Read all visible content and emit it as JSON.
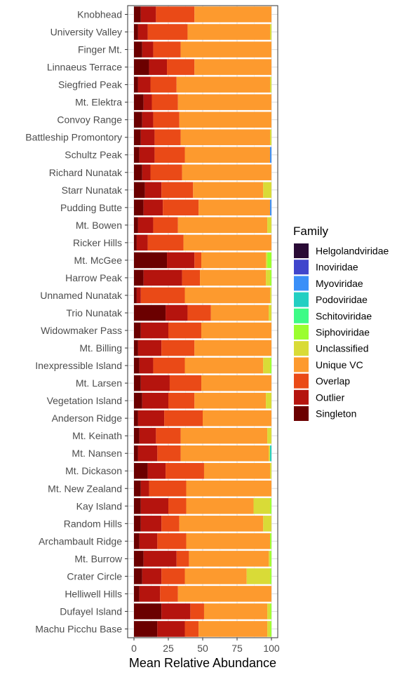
{
  "chart_data": {
    "type": "bar",
    "orientation": "horizontal",
    "stacked": true,
    "xlabel": "Mean Relative Abundance",
    "ylabel": "",
    "xlim": [
      0,
      100
    ],
    "xticks": [
      "0",
      "25",
      "50",
      "75",
      "100"
    ],
    "grid": true,
    "legend": {
      "title": "Family",
      "placement": "right"
    },
    "categories": [
      "Knobhead",
      "University Valley",
      "Finger Mt.",
      "Linnaeus Terrace",
      "Siegfried Peak",
      "Mt. Elektra",
      "Convoy Range",
      "Battleship Promontory",
      "Schultz Peak",
      "Richard Nunatak",
      "Starr Nunatak",
      "Pudding Butte",
      "Mt. Bowen",
      "Ricker Hills",
      "Mt. McGee",
      "Harrow Peak",
      "Unnamed Nunatak",
      "Trio Nunatak",
      "Widowmaker Pass",
      "Mt. Billing",
      "Inexpressible Island",
      "Mt. Larsen",
      "Vegetation Island",
      "Anderson Ridge",
      "Mt. Keinath",
      "Mt. Nansen",
      "Mt. Dickason",
      "Mt. New Zealand",
      "Kay Island",
      "Random Hills",
      "Archambault Ridge",
      "Mt. Burrow",
      "Crater Circle",
      "Helliwell Hills",
      "Dufayel Island",
      "Machu Picchu Base"
    ],
    "series": [
      {
        "name": "Singleton",
        "color": "#6b0000",
        "values": [
          5,
          3,
          6,
          11,
          3,
          7,
          6,
          5,
          4,
          6,
          8,
          7,
          3,
          2,
          24,
          7,
          2,
          23,
          5,
          3,
          4,
          5,
          6,
          3,
          4,
          3,
          10,
          5,
          5,
          5,
          4,
          7,
          6,
          4,
          20,
          17
        ]
      },
      {
        "name": "Outlier",
        "color": "#b5140e",
        "values": [
          11,
          7,
          8,
          13,
          9,
          6,
          8,
          10,
          11,
          6,
          12,
          14,
          11,
          8,
          20,
          28,
          3,
          16,
          20,
          17,
          10,
          21,
          19,
          19,
          12,
          14,
          13,
          6,
          20,
          15,
          13,
          24,
          14,
          15,
          21,
          20
        ]
      },
      {
        "name": "Overlap",
        "color": "#ea4a17",
        "values": [
          28,
          29,
          20,
          20,
          19,
          19,
          19,
          19,
          22,
          23,
          23,
          26,
          18,
          26,
          5,
          13,
          32,
          17,
          24,
          24,
          23,
          23,
          19,
          28,
          18,
          17,
          28,
          27,
          13,
          13,
          21,
          9,
          17,
          13,
          10,
          10
        ]
      },
      {
        "name": "Unique VC",
        "color": "#fd9a2e",
        "values": [
          56,
          60,
          66,
          56,
          68,
          68,
          67,
          65,
          62,
          65,
          51,
          52,
          65,
          64,
          47,
          48,
          62,
          42,
          51,
          56,
          57,
          51,
          52,
          50,
          63,
          64,
          48,
          62,
          49,
          61,
          61,
          58,
          45,
          68,
          46,
          50
        ]
      },
      {
        "name": "Unclassified",
        "color": "#d9db37",
        "values": [
          0,
          1,
          0,
          0,
          1,
          0,
          0,
          1,
          0,
          0,
          6,
          0,
          3,
          0,
          1,
          3,
          1,
          2,
          0,
          0,
          5,
          0,
          4,
          0,
          3,
          1,
          1,
          0,
          12,
          6,
          0,
          1,
          17,
          0,
          2,
          2
        ]
      },
      {
        "name": "Siphoviridae",
        "color": "#9bfe2f",
        "values": [
          0,
          0,
          0,
          0,
          0,
          0,
          0,
          0,
          0,
          0,
          0,
          0,
          0,
          0,
          3,
          1,
          0,
          0,
          0,
          0,
          1,
          0,
          0,
          0,
          0,
          0,
          0,
          0,
          1,
          0,
          1,
          1,
          1,
          0,
          1,
          1
        ]
      },
      {
        "name": "Schitoviridae",
        "color": "#3dfb86",
        "values": [
          0,
          0,
          0,
          0,
          0,
          0,
          0,
          0,
          0,
          0,
          0,
          0,
          0,
          0,
          0,
          0,
          0,
          0,
          0,
          0,
          0,
          0,
          0,
          0,
          0,
          0,
          0,
          0,
          0,
          0,
          0,
          0,
          0,
          0,
          0,
          0
        ]
      },
      {
        "name": "Podoviridae",
        "color": "#22cfc2",
        "values": [
          0,
          0,
          0,
          0,
          0,
          0,
          0,
          0,
          0,
          0,
          0,
          0,
          0,
          0,
          0,
          0,
          0,
          0,
          0,
          0,
          0,
          0,
          0,
          0,
          0,
          1,
          0,
          0,
          0,
          0,
          0,
          0,
          0,
          0,
          0,
          0
        ]
      },
      {
        "name": "Myoviridae",
        "color": "#3a8ff8",
        "values": [
          0,
          0,
          0,
          0,
          0,
          0,
          0,
          0,
          1,
          0,
          0,
          1,
          0,
          0,
          0,
          0,
          0,
          0,
          0,
          0,
          0,
          0,
          0,
          0,
          0,
          0,
          0,
          0,
          0,
          0,
          0,
          0,
          0,
          0,
          0,
          0
        ]
      },
      {
        "name": "Inoviridae",
        "color": "#4046cc",
        "values": [
          0,
          0,
          0,
          0,
          0,
          0,
          0,
          0,
          0,
          0,
          0,
          0,
          0,
          0,
          0,
          0,
          0,
          0,
          0,
          0,
          0,
          0,
          0,
          0,
          0,
          0,
          0,
          0,
          0,
          0,
          0,
          0,
          0,
          0,
          0,
          0
        ]
      },
      {
        "name": "Helgolandviridae",
        "color": "#2a0b36",
        "values": [
          0,
          0,
          0,
          0,
          0,
          0,
          0,
          0,
          0,
          0,
          0,
          0,
          0,
          0,
          0,
          0,
          0,
          0,
          0,
          0,
          0,
          0,
          0,
          0,
          0,
          0,
          0,
          0,
          0,
          0,
          0,
          0,
          0,
          0,
          0,
          0
        ]
      }
    ],
    "legend_order": [
      "Helgolandviridae",
      "Inoviridae",
      "Myoviridae",
      "Podoviridae",
      "Schitoviridae",
      "Siphoviridae",
      "Unclassified",
      "Unique VC",
      "Overlap",
      "Outlier",
      "Singleton"
    ]
  }
}
